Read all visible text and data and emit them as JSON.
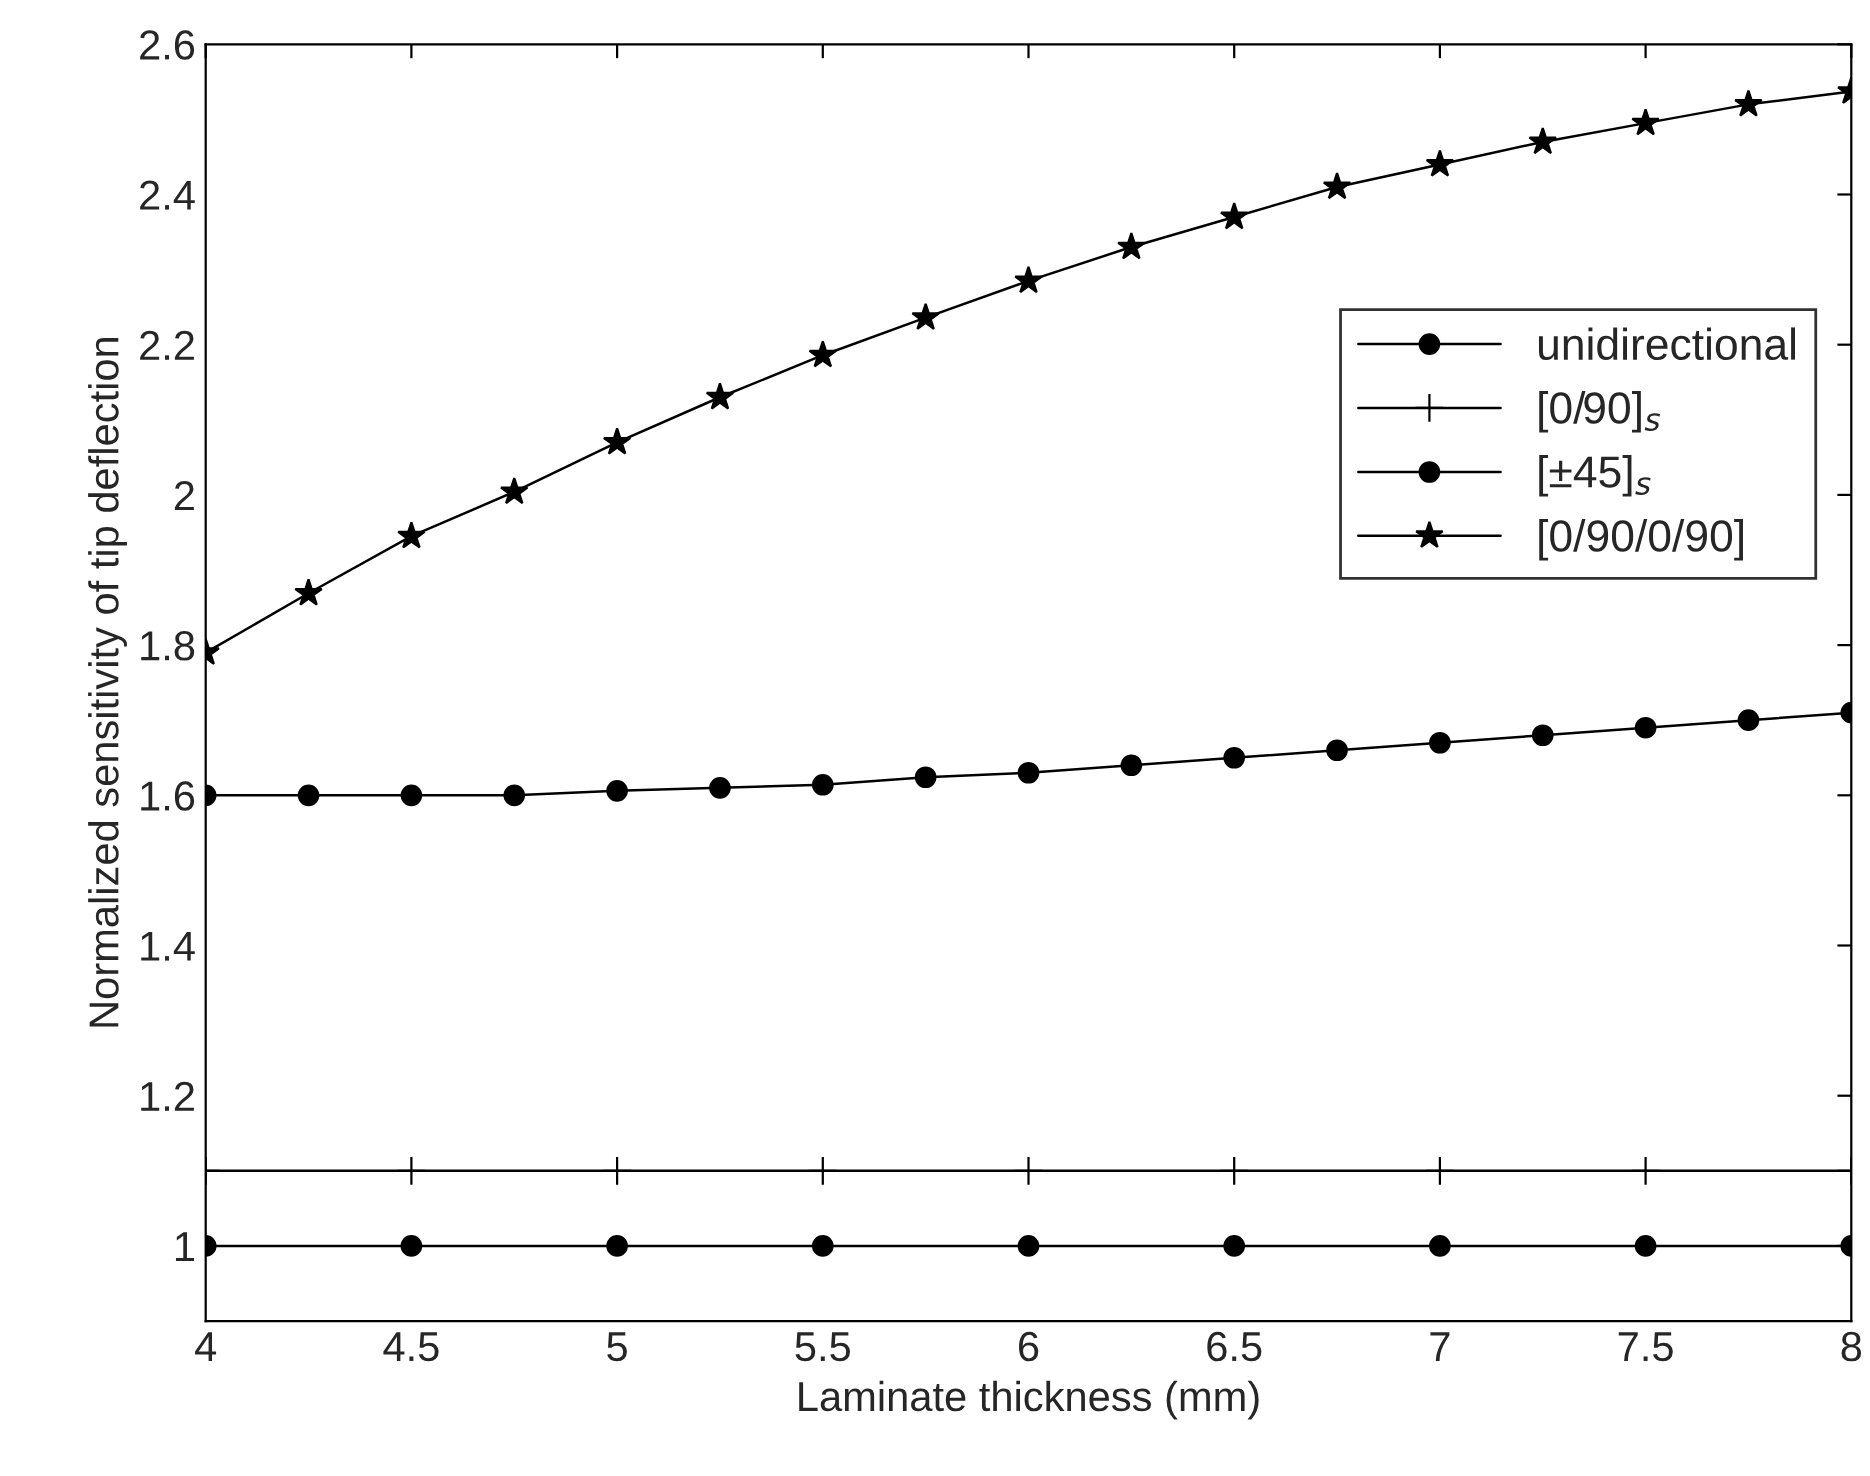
{
  "chart_data": {
    "type": "line",
    "xlabel": "Laminate thickness (mm)",
    "ylabel": "Normalized sensitivity of tip deflection",
    "series": [
      {
        "name": "unidirectional",
        "color": "#000000",
        "marker": "circle",
        "x": [
          4,
          4.5,
          5,
          5.5,
          6,
          6.5,
          7,
          7.5,
          8
        ],
        "values": [
          1.0,
          1.0,
          1.0,
          1.0,
          1.0,
          1.0,
          1.0,
          1.0,
          1.0
        ]
      },
      {
        "name": "[0/90]$_{s}$",
        "color": "#000000",
        "marker": "cross",
        "x": [
          4,
          4.5,
          5,
          5.5,
          6,
          6.5,
          7,
          7.5,
          8
        ],
        "values": [
          1.1,
          1.1,
          1.1,
          1.1,
          1.1,
          1.1,
          1.1,
          1.1,
          1.1
        ]
      },
      {
        "name": "[±45]$_{s}$",
        "color": "#000000",
        "marker": "circle",
        "x": [
          4,
          4.25,
          4.5,
          4.75,
          5,
          5.25,
          5.5,
          5.75,
          6,
          6.25,
          6.5,
          6.75,
          7,
          7.25,
          7.5,
          7.75,
          8
        ],
        "values": [
          1.6,
          1.6,
          1.6,
          1.6,
          1.606,
          1.61,
          1.614,
          1.624,
          1.63,
          1.64,
          1.65,
          1.66,
          1.67,
          1.68,
          1.69,
          1.7,
          1.71
        ]
      },
      {
        "name": "[0/90/0/90]",
        "color": "#000000",
        "marker": "star",
        "x": [
          4,
          4.25,
          4.5,
          4.75,
          5,
          5.25,
          5.5,
          5.75,
          6,
          6.25,
          6.5,
          6.75,
          7,
          7.25,
          7.5,
          7.75,
          8
        ],
        "values": [
          1.79,
          1.869,
          1.945,
          2.004,
          2.07,
          2.13,
          2.186,
          2.236,
          2.285,
          2.33,
          2.37,
          2.41,
          2.44,
          2.47,
          2.495,
          2.52,
          2.537
        ]
      }
    ],
    "xlim": [
      4,
      8
    ],
    "xticks": [
      4,
      4.5,
      5,
      5.5,
      6,
      6.5,
      7,
      7.5,
      8
    ],
    "ylim": [
      0.9,
      2.6
    ],
    "yticks": [
      1,
      1.2,
      1.4,
      1.6,
      1.8,
      2,
      2.2,
      2.4,
      2.6
    ],
    "legend": "upper right",
    "grid": false,
    "line_style": "solid"
  }
}
